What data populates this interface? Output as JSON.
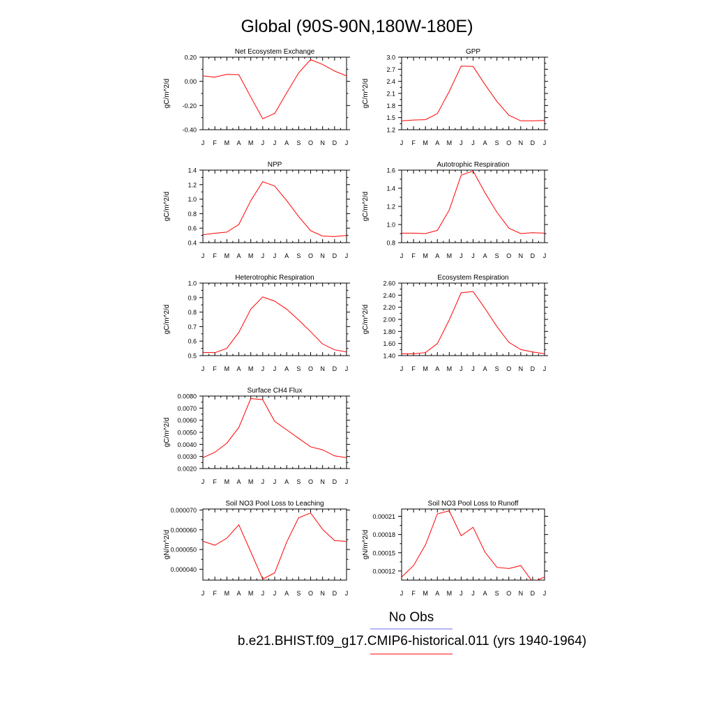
{
  "page_title": "Global (90S-90N,180W-180E)",
  "legend": {
    "items": [
      {
        "label": "No Obs",
        "color": "#6b6bf0"
      },
      {
        "label": "b.e21.BHIST.f09_g17.CMIP6-historical.011 (yrs 1940-1964)",
        "color": "#ff0000"
      }
    ]
  },
  "chart_data": [
    {
      "type": "line",
      "title": "Net Ecosystem Exchange",
      "ylabel": "gC/m^2/d",
      "categories": [
        "J",
        "F",
        "M",
        "A",
        "M",
        "J",
        "J",
        "A",
        "S",
        "O",
        "N",
        "D",
        "J"
      ],
      "ylim": [
        -0.4,
        0.2
      ],
      "yticks": [
        -0.4,
        -0.2,
        0.0,
        0.2
      ],
      "ytick_labels": [
        "-0.40",
        "-0.20",
        "0.00",
        "0.20"
      ],
      "color": "#ff0000",
      "values": [
        0.045,
        0.035,
        0.058,
        0.055,
        -0.13,
        -0.31,
        -0.265,
        -0.095,
        0.07,
        0.18,
        0.14,
        0.085,
        0.045
      ]
    },
    {
      "type": "line",
      "title": "GPP",
      "ylabel": "gC/m^2/d",
      "categories": [
        "J",
        "F",
        "M",
        "A",
        "M",
        "J",
        "J",
        "A",
        "S",
        "O",
        "N",
        "D",
        "J"
      ],
      "ylim": [
        1.2,
        3.0
      ],
      "yticks": [
        1.2,
        1.5,
        1.8,
        2.1,
        2.4,
        2.7,
        3.0
      ],
      "ytick_labels": [
        "1.2",
        "1.5",
        "1.8",
        "2.1",
        "2.4",
        "2.7",
        "3.0"
      ],
      "color": "#ff0000",
      "values": [
        1.42,
        1.44,
        1.45,
        1.6,
        2.15,
        2.78,
        2.77,
        2.32,
        1.9,
        1.56,
        1.42,
        1.42,
        1.43
      ]
    },
    {
      "type": "line",
      "title": "NPP",
      "ylabel": "gC/m^2/d",
      "categories": [
        "J",
        "F",
        "M",
        "A",
        "M",
        "J",
        "J",
        "A",
        "S",
        "O",
        "N",
        "D",
        "J"
      ],
      "ylim": [
        0.4,
        1.4
      ],
      "yticks": [
        0.4,
        0.6,
        0.8,
        1.0,
        1.2,
        1.4
      ],
      "ytick_labels": [
        "0.4",
        "0.6",
        "0.8",
        "1.0",
        "1.2",
        "1.4"
      ],
      "color": "#ff0000",
      "values": [
        0.51,
        0.53,
        0.545,
        0.65,
        0.98,
        1.24,
        1.18,
        0.98,
        0.76,
        0.565,
        0.49,
        0.485,
        0.5
      ]
    },
    {
      "type": "line",
      "title": "Autotrophic Respiration",
      "ylabel": "gC/m^2/d",
      "categories": [
        "J",
        "F",
        "M",
        "A",
        "M",
        "J",
        "J",
        "A",
        "S",
        "O",
        "N",
        "D",
        "J"
      ],
      "ylim": [
        0.8,
        1.6
      ],
      "yticks": [
        0.8,
        1.0,
        1.2,
        1.4,
        1.6
      ],
      "ytick_labels": [
        "0.8",
        "1.0",
        "1.2",
        "1.4",
        "1.6"
      ],
      "color": "#ff0000",
      "values": [
        0.905,
        0.905,
        0.9,
        0.935,
        1.16,
        1.545,
        1.59,
        1.35,
        1.135,
        0.96,
        0.9,
        0.91,
        0.905
      ]
    },
    {
      "type": "line",
      "title": "Heterotrophic Respiration",
      "ylabel": "gC/m^2/d",
      "categories": [
        "J",
        "F",
        "M",
        "A",
        "M",
        "J",
        "J",
        "A",
        "S",
        "O",
        "N",
        "D",
        "J"
      ],
      "ylim": [
        0.5,
        1.0
      ],
      "yticks": [
        0.5,
        0.6,
        0.7,
        0.8,
        0.9,
        1.0
      ],
      "ytick_labels": [
        "0.5",
        "0.6",
        "0.7",
        "0.8",
        "0.9",
        "1.0"
      ],
      "color": "#ff0000",
      "values": [
        0.522,
        0.52,
        0.55,
        0.66,
        0.82,
        0.905,
        0.875,
        0.82,
        0.745,
        0.665,
        0.58,
        0.54,
        0.525
      ]
    },
    {
      "type": "line",
      "title": "Ecosystem Respiration",
      "ylabel": "gC/m^2/d",
      "categories": [
        "J",
        "F",
        "M",
        "A",
        "M",
        "J",
        "J",
        "A",
        "S",
        "O",
        "N",
        "D",
        "J"
      ],
      "ylim": [
        1.4,
        2.6
      ],
      "yticks": [
        1.4,
        1.6,
        1.8,
        2.0,
        2.2,
        2.4,
        2.6
      ],
      "ytick_labels": [
        "1.40",
        "1.60",
        "1.80",
        "2.00",
        "2.20",
        "2.40",
        "2.60"
      ],
      "color": "#ff0000",
      "values": [
        1.43,
        1.43,
        1.45,
        1.6,
        1.99,
        2.44,
        2.46,
        2.18,
        1.88,
        1.62,
        1.5,
        1.46,
        1.43
      ]
    },
    {
      "type": "line",
      "title": "Surface CH4 Flux",
      "ylabel": "gC/m^2/d",
      "categories": [
        "J",
        "F",
        "M",
        "A",
        "M",
        "J",
        "J",
        "A",
        "S",
        "O",
        "N",
        "D",
        "J"
      ],
      "ylim": [
        0.002,
        0.008
      ],
      "yticks": [
        0.002,
        0.003,
        0.004,
        0.005,
        0.006,
        0.007,
        0.008
      ],
      "ytick_labels": [
        "0.0020",
        "0.0030",
        "0.0040",
        "0.0050",
        "0.0060",
        "0.0070",
        "0.0080"
      ],
      "color": "#ff0000",
      "values": [
        0.0029,
        0.00335,
        0.0041,
        0.0054,
        0.0078,
        0.0077,
        0.0059,
        0.0052,
        0.0045,
        0.0038,
        0.00355,
        0.00305,
        0.0029
      ]
    },
    {
      "type": "line",
      "title": "Soil NO3 Pool Loss to Leaching",
      "ylabel": "gN/m^2/d",
      "categories": [
        "J",
        "F",
        "M",
        "A",
        "M",
        "J",
        "J",
        "A",
        "S",
        "O",
        "N",
        "D",
        "J"
      ],
      "ylim": [
        3.45e-05,
        7.05e-05
      ],
      "yticks": [
        4e-05,
        5e-05,
        6e-05,
        7e-05
      ],
      "ytick_labels": [
        "0.000040",
        "0.000050",
        "0.000060",
        "0.000070"
      ],
      "color": "#ff0000",
      "values": [
        5.42e-05,
        5.22e-05,
        5.57e-05,
        6.25e-05,
        4.88e-05,
        3.5e-05,
        3.82e-05,
        5.38e-05,
        6.61e-05,
        6.85e-05,
        6.02e-05,
        5.45e-05,
        5.41e-05
      ]
    },
    {
      "type": "line",
      "title": "Soil NO3 Pool Loss to Runoff",
      "ylabel": "gN/m^2/d",
      "categories": [
        "J",
        "F",
        "M",
        "A",
        "M",
        "J",
        "J",
        "A",
        "S",
        "O",
        "N",
        "D",
        "J"
      ],
      "ylim": [
        0.000105,
        0.000222
      ],
      "yticks": [
        0.00012,
        0.00015,
        0.00018,
        0.00021
      ],
      "ytick_labels": [
        "0.00012",
        "0.00015",
        "0.00018",
        "0.00021"
      ],
      "color": "#ff0000",
      "values": [
        0.00011,
        0.000129,
        0.000163,
        0.000214,
        0.000219,
        0.000178,
        0.000192,
        0.000151,
        0.000126,
        0.000124,
        0.000129,
        0.000102,
        0.00011
      ]
    }
  ]
}
